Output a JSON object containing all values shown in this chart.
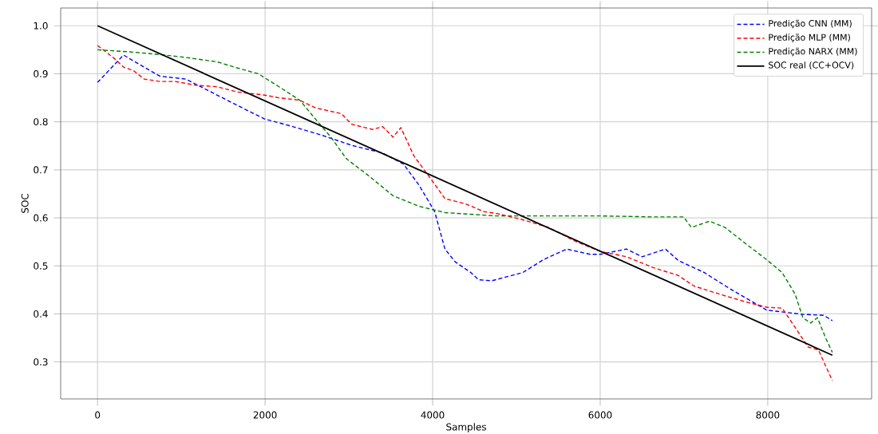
{
  "chart_data": {
    "type": "line",
    "xlabel": "Samples",
    "ylabel": "SOC",
    "xlim": [
      -440,
      9240
    ],
    "ylim": [
      0.223,
      1.037
    ],
    "xticks": [
      0,
      2000,
      4000,
      6000,
      8000
    ],
    "yticks": [
      0.3,
      0.4,
      0.5,
      0.6,
      0.7,
      0.8,
      0.9,
      {
        "value": 1.0,
        "label": "1.0"
      }
    ],
    "grid": true,
    "legend": "top right",
    "marker": "none",
    "series": [
      {
        "name": "Predição CNN (MM)",
        "color": "#0000ff",
        "line_style": "dashed",
        "x": [
          0,
          310,
          743,
          1052,
          1300,
          1671,
          1993,
          2290,
          2662,
          3033,
          3404,
          3652,
          3838,
          4024,
          4147,
          4271,
          4457,
          4550,
          4705,
          5076,
          5323,
          5601,
          5880,
          6000,
          6314,
          6500,
          6778,
          6934,
          7243,
          7552,
          7986,
          8419,
          8667,
          8771
        ],
        "values": [
          0.882,
          0.939,
          0.895,
          0.889,
          0.867,
          0.834,
          0.806,
          0.792,
          0.773,
          0.751,
          0.735,
          0.712,
          0.668,
          0.613,
          0.535,
          0.508,
          0.486,
          0.471,
          0.469,
          0.486,
          0.513,
          0.535,
          0.524,
          0.524,
          0.535,
          0.519,
          0.535,
          0.511,
          0.486,
          0.452,
          0.408,
          0.399,
          0.397,
          0.386
        ]
      },
      {
        "name": "Predição MLP (MM)",
        "color": "#ff0000",
        "line_style": "dashed",
        "x": [
          0,
          186,
          310,
          433,
          557,
          743,
          928,
          1176,
          1424,
          1671,
          1981,
          2166,
          2414,
          2600,
          2909,
          3033,
          3281,
          3404,
          3528,
          3621,
          3776,
          3962,
          4147,
          4395,
          4612,
          4767,
          5076,
          5385,
          5695,
          6005,
          6314,
          6623,
          6933,
          7119,
          7428,
          7738,
          7986,
          8172,
          8357,
          8481,
          8605,
          8771
        ],
        "values": [
          0.959,
          0.934,
          0.914,
          0.906,
          0.889,
          0.884,
          0.884,
          0.876,
          0.873,
          0.862,
          0.856,
          0.85,
          0.845,
          0.829,
          0.817,
          0.795,
          0.784,
          0.79,
          0.768,
          0.788,
          0.729,
          0.685,
          0.64,
          0.629,
          0.613,
          0.609,
          0.596,
          0.58,
          0.552,
          0.53,
          0.519,
          0.497,
          0.48,
          0.458,
          0.441,
          0.425,
          0.414,
          0.412,
          0.364,
          0.331,
          0.325,
          0.261
        ]
      },
      {
        "name": "Predição NARX (MM)",
        "color": "#008000",
        "line_style": "dashed",
        "x": [
          0,
          433,
          805,
          1052,
          1424,
          1671,
          1919,
          2166,
          2414,
          2600,
          2786,
          2971,
          3219,
          3528,
          3838,
          4147,
          4580,
          4767,
          5385,
          6005,
          6623,
          6995,
          7088,
          7305,
          7490,
          7738,
          7986,
          8172,
          8327,
          8419,
          8512,
          8593,
          8698,
          8771
        ],
        "values": [
          0.95,
          0.945,
          0.939,
          0.934,
          0.925,
          0.912,
          0.9,
          0.873,
          0.845,
          0.806,
          0.768,
          0.723,
          0.69,
          0.646,
          0.624,
          0.611,
          0.606,
          0.604,
          0.604,
          0.604,
          0.602,
          0.602,
          0.58,
          0.593,
          0.58,
          0.546,
          0.513,
          0.486,
          0.441,
          0.392,
          0.381,
          0.392,
          0.347,
          0.32
        ]
      },
      {
        "name": "SOC real (CC+OCV)",
        "color": "#000000",
        "line_style": "solid",
        "x": [
          0,
          8771
        ],
        "values": [
          1.0,
          0.314
        ]
      }
    ]
  }
}
